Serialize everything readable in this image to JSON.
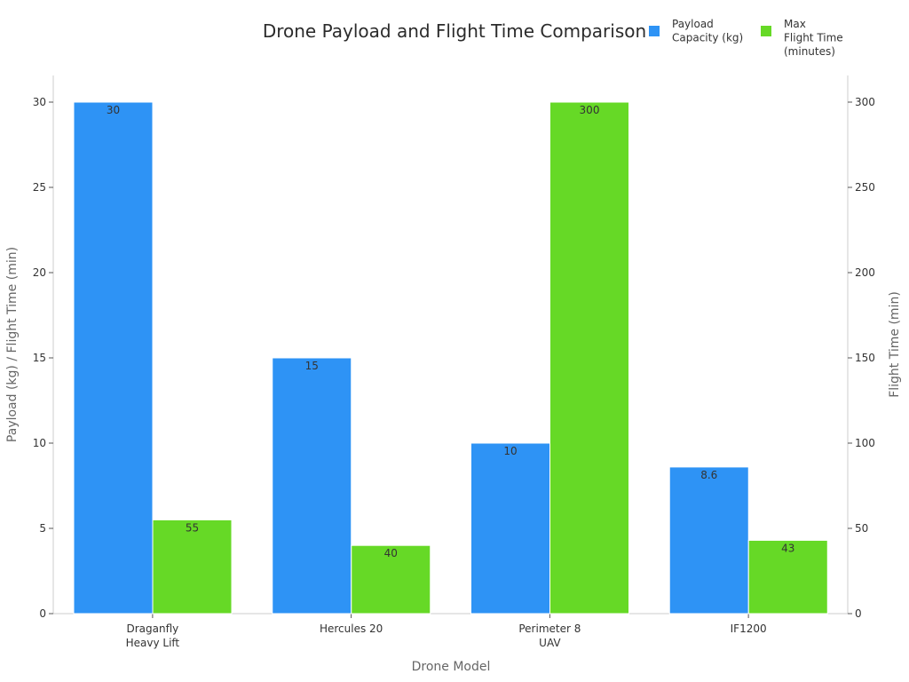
{
  "chart_data": {
    "type": "bar",
    "title": "Drone Payload and Flight Time Comparison",
    "xlabel": "Drone Model",
    "ylabel_left": "Payload (kg) / Flight Time (min)",
    "ylabel_right": "Flight Time (min)",
    "categories": [
      [
        "Draganfly",
        "Heavy Lift"
      ],
      [
        "Hercules 20"
      ],
      [
        "Perimeter 8",
        "UAV"
      ],
      [
        "IF1200"
      ]
    ],
    "series": [
      {
        "name": [
          "Payload",
          "Capacity (kg)"
        ],
        "axis": "left",
        "color": "#2e93f5",
        "values": [
          30,
          15,
          10,
          8.6
        ],
        "labels": [
          "30",
          "15",
          "10",
          "8.6"
        ]
      },
      {
        "name": [
          "Max",
          "Flight Time",
          "(minutes)"
        ],
        "axis": "right",
        "color": "#66d926",
        "values": [
          55,
          40,
          300,
          43
        ],
        "labels": [
          "55",
          "40",
          "300",
          "43"
        ]
      }
    ],
    "ylim_left": [
      0,
      30
    ],
    "yticks_left": [
      "0",
      "5",
      "10",
      "15",
      "20",
      "25",
      "30"
    ],
    "ylim_right": [
      0,
      300
    ],
    "yticks_right": [
      "0",
      "50",
      "100",
      "150",
      "200",
      "250",
      "300"
    ],
    "legend_position": "top-right",
    "grid": false
  }
}
